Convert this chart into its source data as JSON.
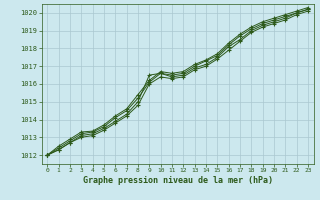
{
  "title": "Graphe pression niveau de la mer (hPa)",
  "xlabel_hours": [
    0,
    1,
    2,
    3,
    4,
    5,
    6,
    7,
    8,
    9,
    10,
    11,
    12,
    13,
    14,
    15,
    16,
    17,
    18,
    19,
    20,
    21,
    22,
    23
  ],
  "ylim": [
    1011.5,
    1020.5
  ],
  "yticks": [
    1012,
    1013,
    1014,
    1015,
    1016,
    1017,
    1018,
    1019,
    1020
  ],
  "bg_color": "#cce8ee",
  "grid_color": "#aac8d0",
  "line_color": "#2d5a1b",
  "lines": [
    [
      1012.0,
      1012.3,
      1012.7,
      1013.1,
      1013.2,
      1013.5,
      1013.9,
      1014.3,
      1015.0,
      1016.5,
      1016.6,
      1016.4,
      1016.5,
      1016.9,
      1017.1,
      1017.5,
      1018.1,
      1018.5,
      1019.0,
      1019.3,
      1019.5,
      1019.7,
      1020.0,
      1020.2
    ],
    [
      1012.0,
      1012.3,
      1012.7,
      1013.0,
      1013.1,
      1013.4,
      1013.8,
      1014.2,
      1014.8,
      1016.0,
      1016.4,
      1016.3,
      1016.4,
      1016.8,
      1017.0,
      1017.4,
      1017.9,
      1018.4,
      1018.9,
      1019.2,
      1019.4,
      1019.6,
      1019.9,
      1020.1
    ],
    [
      1012.0,
      1012.4,
      1012.8,
      1013.2,
      1013.3,
      1013.6,
      1014.1,
      1014.5,
      1015.2,
      1016.1,
      1016.6,
      1016.5,
      1016.6,
      1017.0,
      1017.3,
      1017.6,
      1018.2,
      1018.7,
      1019.1,
      1019.4,
      1019.6,
      1019.8,
      1020.0,
      1020.2
    ],
    [
      1012.0,
      1012.5,
      1012.9,
      1013.3,
      1013.35,
      1013.7,
      1014.2,
      1014.6,
      1015.4,
      1016.2,
      1016.7,
      1016.6,
      1016.7,
      1017.1,
      1017.35,
      1017.7,
      1018.3,
      1018.8,
      1019.2,
      1019.5,
      1019.7,
      1019.9,
      1020.1,
      1020.3
    ]
  ]
}
